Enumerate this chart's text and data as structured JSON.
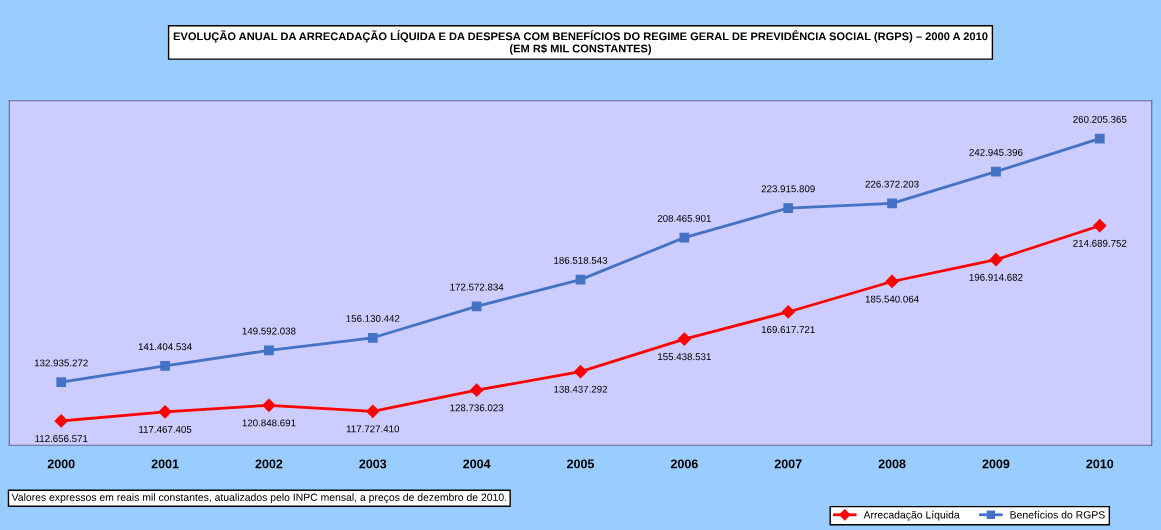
{
  "chart_data": {
    "type": "line",
    "title": "EVOLUÇÃO ANUAL DA ARRECADAÇÃO LÍQUIDA E DA DESPESA COM BENEFÍCIOS DO REGIME GERAL DE PREVIDÊNCIA SOCIAL (RGPS) – 2000 A 2010\n(EM R$ MIL CONSTANTES)",
    "categories": [
      "2000",
      "2001",
      "2002",
      "2003",
      "2004",
      "2005",
      "2006",
      "2007",
      "2008",
      "2009",
      "2010"
    ],
    "ylim": [
      100000000,
      280000000
    ],
    "tick_labels": "x",
    "grid": false,
    "legend": "bottom right",
    "line_style": "solid",
    "series": [
      {
        "name": "Arrecadação Líquida",
        "color": "#ff0000",
        "marker": "diamond",
        "values": [
          112656571,
          117467405,
          120848691,
          117727410,
          128736023,
          138437292,
          155438531,
          169617721,
          185540064,
          196914682,
          214689752
        ],
        "value_labels": [
          "112.656.571",
          "117.467.405",
          "120.848.691",
          "117.727.410",
          "128.736.023",
          "138.437.292",
          "155.438.531",
          "169.617.721",
          "185.540.064",
          "196.914.682",
          "214.689.752"
        ]
      },
      {
        "name": "Benefícios do RGPS",
        "color": "#4472c4",
        "marker": "square",
        "values": [
          132935272,
          141404534,
          149592038,
          156130442,
          172572834,
          186518543,
          208465901,
          223915809,
          226372203,
          242945396,
          260205365
        ],
        "value_labels": [
          "132.935.272",
          "141.404.534",
          "149.592.038",
          "156.130.442",
          "172.572.834",
          "186.518.543",
          "208.465.901",
          "223.915.809",
          "226.372.203",
          "242.945.396",
          "260.205.365"
        ]
      }
    ],
    "annotations": [
      "Valores expressos em reais mil constantes, atualizados pelo INPC mensal, a preços de dezembro de 2010."
    ]
  }
}
